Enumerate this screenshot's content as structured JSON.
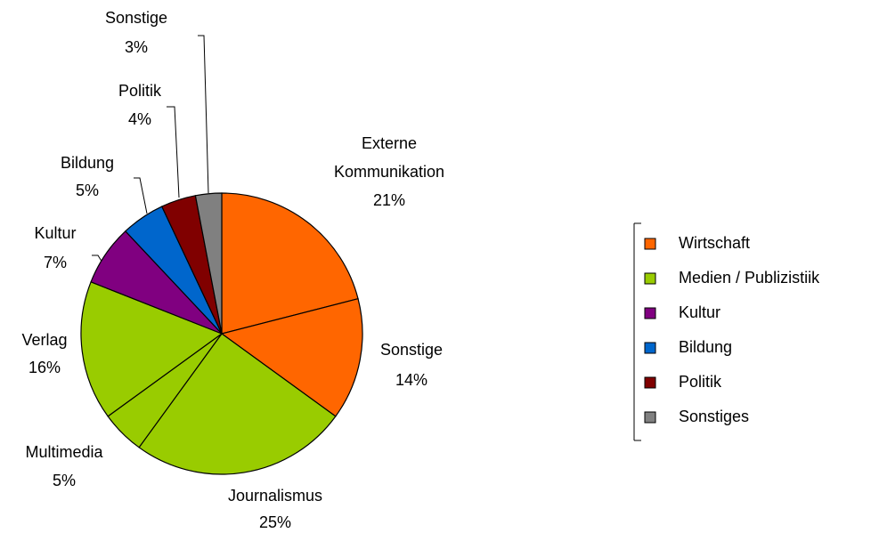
{
  "chart_data": {
    "type": "pie",
    "categories": [
      "Externe Kommunikation",
      "Sonstige",
      "Journalismus",
      "Multimedia",
      "Verlag",
      "Kultur",
      "Bildung",
      "Politik",
      "Sonstige"
    ],
    "values": [
      21,
      14,
      25,
      5,
      16,
      7,
      5,
      4,
      3
    ],
    "value_labels": [
      "21%",
      "14%",
      "25%",
      "5%",
      "16%",
      "7%",
      "5%",
      "4%",
      "3%"
    ],
    "colors": [
      "#ff6600",
      "#ff6600",
      "#99cc00",
      "#99cc00",
      "#99cc00",
      "#800080",
      "#0066cc",
      "#800000",
      "#808080"
    ],
    "legend": [
      {
        "name": "Wirtschaft",
        "color": "#ff6600"
      },
      {
        "name": "Medien / Publizistiik",
        "color": "#99cc00"
      },
      {
        "name": "Kultur",
        "color": "#800080"
      },
      {
        "name": "Bildung",
        "color": "#0066cc"
      },
      {
        "name": "Politik",
        "color": "#800000"
      },
      {
        "name": "Sonstiges",
        "color": "#808080"
      }
    ]
  }
}
